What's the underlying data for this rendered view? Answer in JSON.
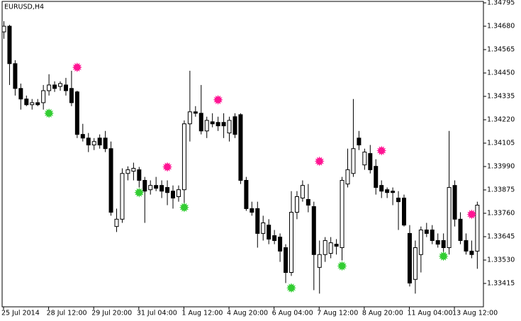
{
  "chart_data": {
    "type": "candlestick",
    "title": "EURUSD,H4",
    "categories": [
      "25 Jul 2014",
      null,
      null,
      null,
      null,
      null,
      null,
      null,
      "28 Jul 12:00",
      null,
      null,
      null,
      null,
      null,
      null,
      null,
      "29 Jul 20:00",
      null,
      null,
      null,
      null,
      null,
      null,
      null,
      "31 Jul 04:00",
      null,
      null,
      null,
      null,
      null,
      null,
      null,
      "1 Aug 12:00",
      null,
      null,
      null,
      null,
      null,
      null,
      null,
      "4 Aug 20:00",
      null,
      null,
      null,
      null,
      null,
      null,
      null,
      "6 Aug 04:00",
      null,
      null,
      null,
      null,
      null,
      null,
      null,
      "7 Aug 12:00",
      null,
      null,
      null,
      null,
      null,
      null,
      null,
      "8 Aug 20:00",
      null,
      null,
      null,
      null,
      null,
      null,
      null,
      "11 Aug 04:00",
      null,
      null,
      null,
      null,
      null,
      null,
      null,
      "13 Aug 12:00",
      null,
      null,
      null,
      null
    ],
    "open": [
      1.34652,
      1.3468,
      1.34496,
      1.34374,
      1.34322,
      1.34294,
      1.34304,
      1.34304,
      1.34363,
      1.34391,
      1.34384,
      1.34391,
      1.34374,
      1.34357,
      1.34148,
      1.3413,
      1.34096,
      1.3413,
      1.3413,
      1.34078,
      1.33695,
      1.33731,
      1.33956,
      1.33967,
      1.33974,
      1.33922,
      1.33876,
      1.33897,
      1.33897,
      1.33887,
      1.33869,
      1.33842,
      1.33876,
      1.342,
      1.34259,
      1.34252,
      1.34165,
      1.3421,
      1.34207,
      1.34207,
      1.34155,
      1.34235,
      1.34245,
      1.33922,
      1.33783,
      1.33783,
      1.33661,
      1.33702,
      1.3365,
      1.33643,
      1.33591,
      1.33469,
      1.33765,
      1.33835,
      1.33828,
      1.33793,
      1.33494,
      1.33557,
      1.33563,
      1.33608,
      1.33591,
      1.33904,
      1.33956,
      1.3413,
      1.33998,
      1.34054,
      1.33991,
      1.33897,
      1.33876,
      1.33869,
      1.33835,
      1.33835,
      1.33661,
      1.33435,
      1.33557,
      1.33678,
      1.33678,
      1.33626,
      1.33626,
      1.33591,
      1.33897,
      1.33731,
      1.33626,
      1.33574,
      1.33574
    ],
    "high": [
      1.34705,
      1.34687,
      1.34513,
      1.34398,
      1.34339,
      1.34322,
      1.34322,
      1.34391,
      1.34444,
      1.34409,
      1.34409,
      1.34426,
      1.34461,
      1.34363,
      1.342,
      1.34155,
      1.3413,
      1.34148,
      1.34165,
      1.34113,
      1.33783,
      1.33981,
      1.33991,
      1.34009,
      1.33988,
      1.33939,
      1.33922,
      1.33939,
      1.33922,
      1.33922,
      1.33897,
      1.33897,
      1.34217,
      1.34461,
      1.34287,
      1.34391,
      1.34235,
      1.34252,
      1.34235,
      1.34252,
      1.34235,
      1.34252,
      1.34252,
      1.33939,
      1.33817,
      1.33817,
      1.33748,
      1.33731,
      1.33678,
      1.33661,
      1.33608,
      1.33869,
      1.33869,
      1.33922,
      1.33904,
      1.33817,
      1.33626,
      1.33643,
      1.33643,
      1.33633,
      1.33939,
      1.34078,
      1.34322,
      1.34165,
      1.34078,
      1.34096,
      1.34026,
      1.33922,
      1.33887,
      1.33887,
      1.33869,
      1.33852,
      1.33702,
      1.33626,
      1.33695,
      1.33713,
      1.33702,
      1.33661,
      1.33661,
      1.34165,
      1.33922,
      1.33765,
      1.33661,
      1.33626,
      1.33817
    ],
    "low": [
      1.34618,
      1.34391,
      1.34339,
      1.3427,
      1.34287,
      1.3427,
      1.34287,
      1.3427,
      1.34339,
      1.34357,
      1.34363,
      1.34339,
      1.34287,
      1.3413,
      1.34113,
      1.34061,
      1.34071,
      1.34078,
      1.34061,
      1.33748,
      1.33668,
      1.33713,
      1.33922,
      1.33922,
      1.33887,
      1.33713,
      1.33852,
      1.33869,
      1.33835,
      1.338,
      1.33783,
      1.33817,
      1.33807,
      1.34113,
      1.34235,
      1.34148,
      1.3413,
      1.34183,
      1.34165,
      1.3413,
      1.34113,
      1.3413,
      1.33904,
      1.33772,
      1.33748,
      1.33591,
      1.33626,
      1.33608,
      1.33608,
      1.33521,
      1.33417,
      1.33452,
      1.33731,
      1.33817,
      1.33765,
      1.33382,
      1.33365,
      1.33521,
      1.33539,
      1.33557,
      1.33528,
      1.33887,
      1.33939,
      1.34071,
      1.33974,
      1.33956,
      1.33852,
      1.33835,
      1.33835,
      1.338,
      1.33678,
      1.33695,
      1.334,
      1.33365,
      1.33469,
      1.33643,
      1.33608,
      1.33591,
      1.33563,
      1.33557,
      1.33695,
      1.33608,
      1.33557,
      1.33539,
      1.33487
    ],
    "close": [
      1.3468,
      1.34496,
      1.34374,
      1.34322,
      1.34294,
      1.34304,
      1.34294,
      1.34363,
      1.34391,
      1.34374,
      1.34398,
      1.34363,
      1.34304,
      1.34148,
      1.3413,
      1.34096,
      1.34113,
      1.34096,
      1.34078,
      1.33765,
      1.33731,
      1.33956,
      1.33974,
      1.33981,
      1.33922,
      1.33869,
      1.33897,
      1.33883,
      1.33869,
      1.33862,
      1.33835,
      1.33876,
      1.342,
      1.34259,
      1.34252,
      1.34165,
      1.34217,
      1.342,
      1.3419,
      1.3419,
      1.34217,
      1.34148,
      1.33922,
      1.33783,
      1.33765,
      1.33661,
      1.33713,
      1.33633,
      1.33626,
      1.33574,
      1.33469,
      1.33765,
      1.33842,
      1.33897,
      1.338,
      1.33557,
      1.33557,
      1.33626,
      1.33615,
      1.33598,
      1.33922,
      1.33974,
      1.34078,
      1.34096,
      1.34061,
      1.33974,
      1.33887,
      1.33869,
      1.33862,
      1.33862,
      1.33817,
      1.33702,
      1.33417,
      1.33591,
      1.33678,
      1.33661,
      1.33626,
      1.33608,
      1.33591,
      1.33887,
      1.33731,
      1.33626,
      1.33574,
      1.33557,
      1.338
    ],
    "up_color": "#ffffff",
    "down_color": "#000000",
    "signals": [
      {
        "color": "#ff1493",
        "values": [
          null,
          null,
          null,
          null,
          null,
          null,
          null,
          null,
          null,
          null,
          null,
          null,
          null,
          1.34478,
          null,
          null,
          null,
          null,
          null,
          null,
          null,
          null,
          null,
          null,
          null,
          null,
          null,
          null,
          null,
          1.33988,
          null,
          null,
          null,
          null,
          null,
          null,
          null,
          null,
          1.34318,
          null,
          null,
          null,
          null,
          null,
          null,
          null,
          null,
          null,
          null,
          null,
          null,
          null,
          null,
          null,
          null,
          null,
          1.34016,
          null,
          null,
          null,
          null,
          null,
          null,
          null,
          null,
          null,
          null,
          1.34068,
          null,
          null,
          null,
          null,
          null,
          null,
          null,
          null,
          null,
          null,
          null,
          null,
          null,
          null,
          null,
          1.33755,
          null
        ]
      },
      {
        "color": "#32cd32",
        "values": [
          null,
          null,
          null,
          null,
          null,
          null,
          null,
          null,
          1.34252,
          null,
          null,
          null,
          null,
          null,
          null,
          null,
          null,
          null,
          null,
          null,
          null,
          null,
          null,
          null,
          1.33862,
          null,
          null,
          null,
          null,
          null,
          null,
          null,
          1.33789,
          null,
          null,
          null,
          null,
          null,
          null,
          null,
          null,
          null,
          null,
          null,
          null,
          null,
          null,
          null,
          null,
          null,
          null,
          1.33393,
          null,
          null,
          null,
          null,
          null,
          null,
          null,
          null,
          1.33501,
          null,
          null,
          null,
          null,
          null,
          null,
          null,
          null,
          null,
          null,
          null,
          null,
          null,
          null,
          null,
          null,
          null,
          1.33549,
          null,
          null,
          null,
          null,
          null,
          null
        ]
      }
    ],
    "ylim": [
      1.333,
      1.34802
    ],
    "yticks": [
      1.34795,
      {
        "value": 1.3468,
        "label": "1.34680"
      },
      1.34565,
      {
        "value": 1.3445,
        "label": "1.34450"
      },
      1.34335,
      {
        "value": 1.3422,
        "label": "1.34220"
      },
      1.34105,
      {
        "value": 1.3399,
        "label": "1.33990"
      },
      1.33875,
      {
        "value": 1.3376,
        "label": "1.33760"
      },
      1.33645,
      {
        "value": 1.3353,
        "label": "1.33530"
      },
      1.33415
    ]
  }
}
